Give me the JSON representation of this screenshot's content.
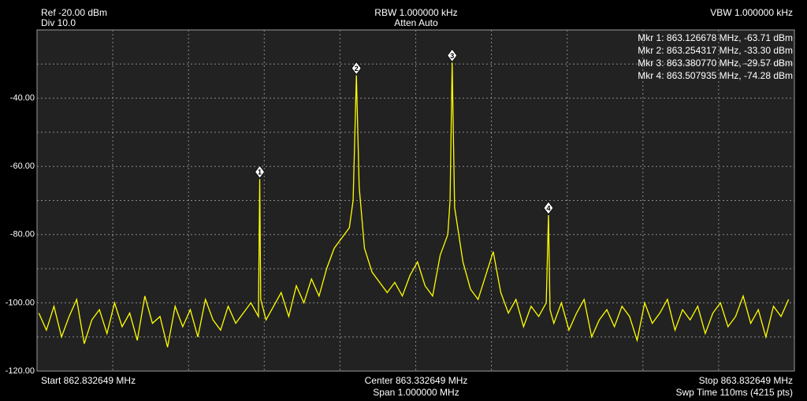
{
  "chart_data": {
    "type": "line",
    "header": {
      "ref": "Ref -20.00 dBm",
      "div": "Div 10.0",
      "rbw": "RBW 1.000000 kHz",
      "atten": "Atten Auto",
      "vbw": "VBW 1.000000 kHz"
    },
    "footer": {
      "start": "Start 862.832649 MHz",
      "center": "Center 863.332649 MHz",
      "span": "Span 1.000000 MHz",
      "stop": "Stop 863.832649 MHz",
      "sweep": "Swp Time 110ms (4215 pts)"
    },
    "xlim": [
      862.832649,
      863.832649
    ],
    "ylim": [
      -120,
      -20
    ],
    "yticks": [
      {
        "value": -40,
        "label": "-40.00"
      },
      {
        "value": -60,
        "label": "-60.00"
      },
      {
        "value": -80,
        "label": "-80.00"
      },
      {
        "value": -100,
        "label": "-100.00"
      },
      {
        "value": -120,
        "label": "-120.00"
      }
    ],
    "ygrid": [
      -110,
      -100,
      -90,
      -80,
      -70,
      -60,
      -50,
      -40,
      -30
    ],
    "xgrid": [
      862.932649,
      863.032649,
      863.132649,
      863.232649,
      863.332649,
      863.432649,
      863.532649,
      863.632649,
      863.732649
    ],
    "grid": true,
    "x": [
      862.835,
      862.845,
      862.855,
      862.865,
      862.875,
      862.885,
      862.895,
      862.905,
      862.915,
      862.925,
      862.935,
      862.945,
      862.955,
      862.965,
      862.975,
      862.985,
      862.995,
      863.005,
      863.015,
      863.025,
      863.035,
      863.045,
      863.055,
      863.065,
      863.075,
      863.085,
      863.095,
      863.105,
      863.115,
      863.125,
      863.126678,
      863.128,
      863.135,
      863.145,
      863.155,
      863.165,
      863.175,
      863.185,
      863.195,
      863.205,
      863.215,
      863.225,
      863.235,
      863.245,
      863.25,
      863.254317,
      863.258,
      863.265,
      863.275,
      863.285,
      863.295,
      863.305,
      863.315,
      863.325,
      863.335,
      863.345,
      863.355,
      863.365,
      863.375,
      863.378,
      863.38077,
      863.384,
      863.395,
      863.405,
      863.415,
      863.425,
      863.435,
      863.445,
      863.455,
      863.465,
      863.475,
      863.485,
      863.495,
      863.505,
      863.507935,
      863.51,
      863.515,
      863.525,
      863.535,
      863.545,
      863.555,
      863.565,
      863.575,
      863.585,
      863.595,
      863.605,
      863.615,
      863.625,
      863.635,
      863.645,
      863.655,
      863.665,
      863.675,
      863.685,
      863.695,
      863.705,
      863.715,
      863.725,
      863.735,
      863.745,
      863.755,
      863.765,
      863.775,
      863.785,
      863.795,
      863.805,
      863.815,
      863.825
    ],
    "series": [
      {
        "color": "#ffff00",
        "values": [
          -103,
          -108,
          -101,
          -110,
          -104,
          -99,
          -112,
          -105,
          -102,
          -109,
          -100,
          -107,
          -103,
          -111,
          -98,
          -106,
          -104,
          -113,
          -101,
          -107,
          -102,
          -110,
          -99,
          -105,
          -108,
          -101,
          -106,
          -103,
          -100,
          -104,
          -63.71,
          -99,
          -105,
          -101,
          -97,
          -104,
          -95,
          -100,
          -93,
          -98,
          -90,
          -84,
          -81,
          -78,
          -70,
          -33.3,
          -66,
          -84,
          -91,
          -94,
          -97,
          -94,
          -98,
          -92,
          -88,
          -95,
          -98,
          -86,
          -80,
          -70,
          -29.57,
          -72,
          -88,
          -96,
          -99,
          -92,
          -85,
          -97,
          -103,
          -99,
          -107,
          -101,
          -104,
          -100,
          -74.28,
          -102,
          -106,
          -100,
          -108,
          -103,
          -99,
          -110,
          -105,
          -102,
          -107,
          -101,
          -104,
          -111,
          -100,
          -106,
          -103,
          -99,
          -108,
          -102,
          -105,
          -101,
          -109,
          -103,
          -100,
          -107,
          -104,
          -98,
          -106,
          -102,
          -110,
          -101,
          -104,
          -99
        ]
      }
    ],
    "markers": [
      {
        "label": "1",
        "x": 863.126678,
        "y": -63.71,
        "text": "Mkr 1: 863.126678 MHz, -63.71 dBm"
      },
      {
        "label": "2",
        "x": 863.254317,
        "y": -33.3,
        "text": "Mkr 2: 863.254317 MHz, -33.30 dBm"
      },
      {
        "label": "3",
        "x": 863.38077,
        "y": -29.57,
        "text": "Mkr 3: 863.380770 MHz, -29.57 dBm"
      },
      {
        "label": "4",
        "x": 863.507935,
        "y": -74.28,
        "text": "Mkr 4: 863.507935 MHz, -74.28 dBm"
      }
    ]
  }
}
